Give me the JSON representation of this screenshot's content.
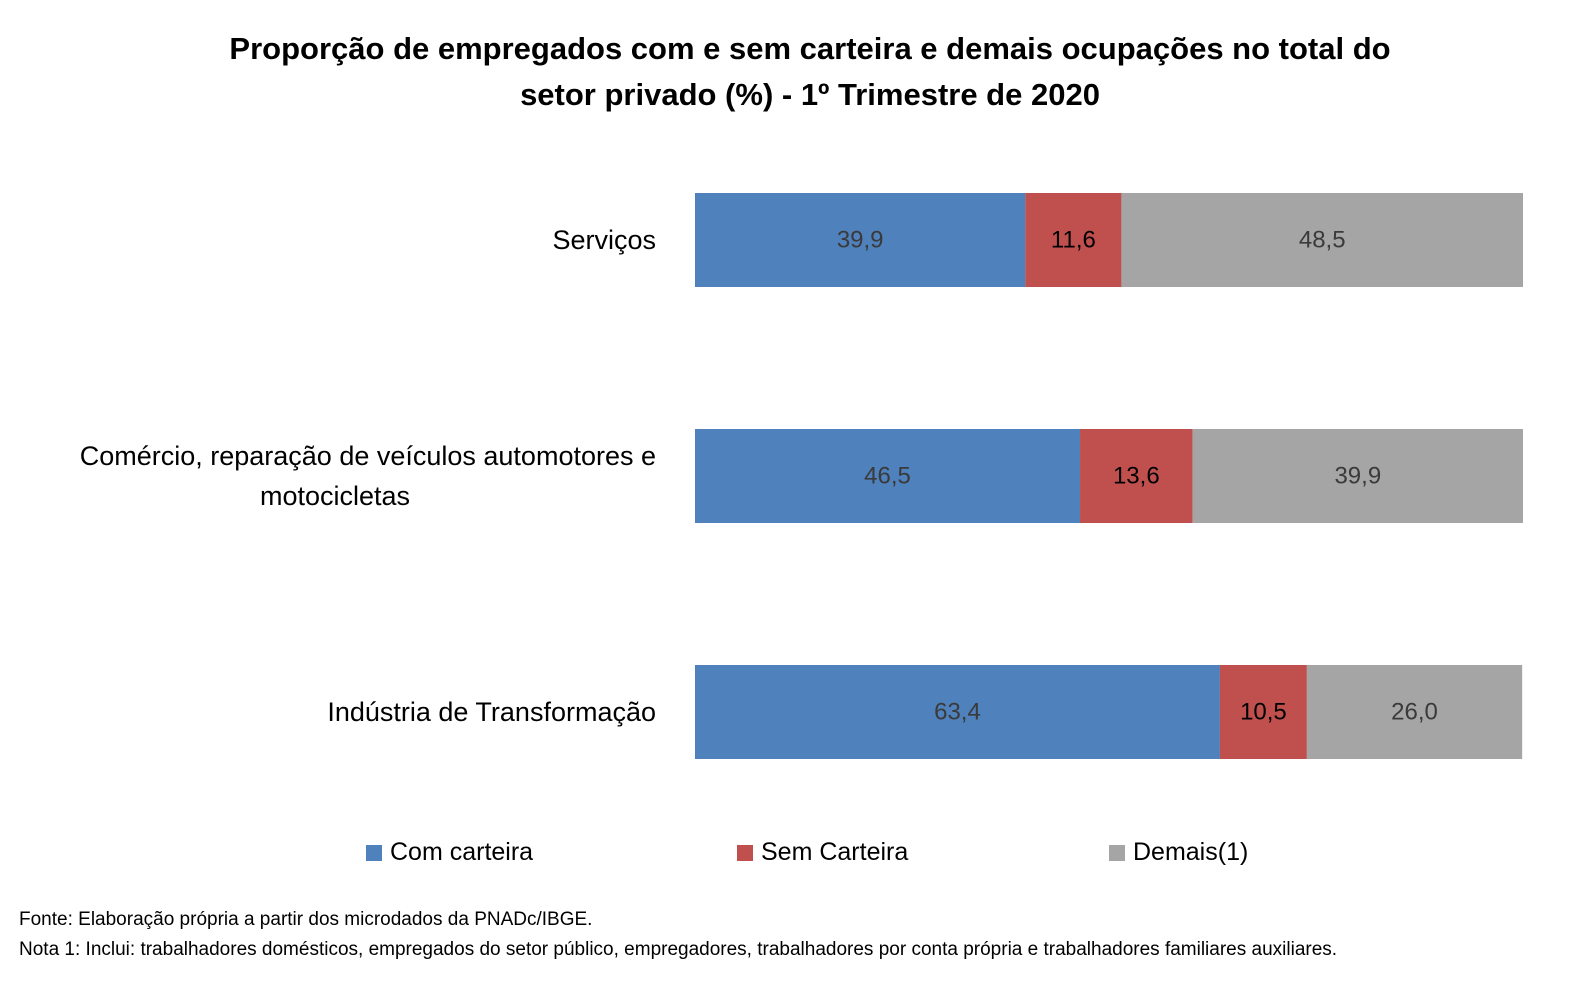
{
  "title_line1": "Proporção de empregados com e sem carteira e demais ocupações no total do",
  "title_line2": "setor privado (%) - 1º Trimestre de 2020",
  "colors": {
    "com_carteira": "#4f81bd",
    "sem_carteira": "#c0504d",
    "demais": "#a5a5a5"
  },
  "chart_data": {
    "type": "bar",
    "orientation": "horizontal",
    "stacked": true,
    "title": "Proporção de empregados com e sem carteira e demais ocupações no total do setor privado (%) - 1º Trimestre de 2020",
    "categories": [
      [
        "Serviços"
      ],
      [
        "Comércio, reparação de veículos automotores e",
        "motocicletas"
      ],
      [
        "Indústria de Transformação"
      ]
    ],
    "series": [
      {
        "name": "Com carteira",
        "values": [
          39.9,
          46.5,
          63.4
        ],
        "labels": [
          "39,9",
          "46,5",
          "63,4"
        ]
      },
      {
        "name": "Sem Carteira",
        "values": [
          11.6,
          13.6,
          10.5
        ],
        "labels": [
          "11,6",
          "13,6",
          "10,5"
        ]
      },
      {
        "name": "Demais(1)",
        "values": [
          48.5,
          39.9,
          26.0
        ],
        "labels": [
          "48,5",
          "39,9",
          "26,0"
        ]
      }
    ],
    "xlim": [
      0,
      100
    ],
    "grid": false,
    "legend_position": "bottom"
  },
  "footer": {
    "source": "Fonte: Elaboração própria a partir dos microdados da PNADc/IBGE.",
    "note": "Nota 1: Inclui: trabalhadores domésticos, empregados do setor público, empregadores, trabalhadores por conta própria e trabalhadores familiares auxiliares."
  }
}
